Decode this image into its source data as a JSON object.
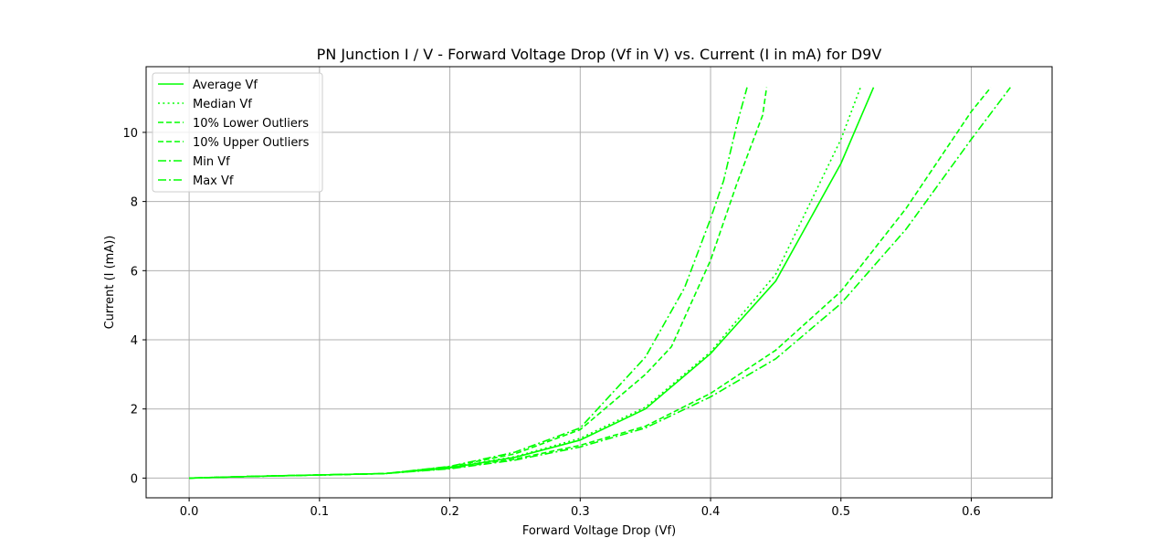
{
  "chart_data": {
    "type": "line",
    "title": "PN Junction I / V - Forward Voltage Drop (Vf in V) vs. Current (I in mA) for D9V",
    "xlabel": "Forward Voltage Drop (Vf)",
    "ylabel": "Current (I (mA))",
    "xlim": [
      -0.033,
      0.662
    ],
    "ylim": [
      -0.57,
      11.9
    ],
    "xticks": [
      "0.0",
      "0.1",
      "0.2",
      "0.3",
      "0.4",
      "0.5",
      "0.6"
    ],
    "yticks": [
      "0",
      "2",
      "4",
      "6",
      "8",
      "10"
    ],
    "grid": true,
    "legend_position": "top-left",
    "series_color": "#00ff00",
    "series": [
      {
        "name": "Average Vf",
        "style": "solid",
        "points": [
          [
            0.0,
            0.0
          ],
          [
            0.05,
            0.05
          ],
          [
            0.1,
            0.09
          ],
          [
            0.15,
            0.13
          ],
          [
            0.2,
            0.3
          ],
          [
            0.25,
            0.6
          ],
          [
            0.3,
            1.1
          ],
          [
            0.35,
            2.0
          ],
          [
            0.4,
            3.6
          ],
          [
            0.45,
            5.7
          ],
          [
            0.5,
            9.1
          ],
          [
            0.525,
            11.3
          ]
        ]
      },
      {
        "name": "Median Vf",
        "style": "dotted",
        "points": [
          [
            0.0,
            0.0
          ],
          [
            0.05,
            0.05
          ],
          [
            0.1,
            0.09
          ],
          [
            0.15,
            0.13
          ],
          [
            0.2,
            0.31
          ],
          [
            0.25,
            0.62
          ],
          [
            0.3,
            1.15
          ],
          [
            0.35,
            2.05
          ],
          [
            0.4,
            3.65
          ],
          [
            0.45,
            5.9
          ],
          [
            0.5,
            9.8
          ],
          [
            0.515,
            11.3
          ]
        ]
      },
      {
        "name": "10% Lower Outliers",
        "style": "dashed",
        "points": [
          [
            0.0,
            0.0
          ],
          [
            0.05,
            0.05
          ],
          [
            0.1,
            0.09
          ],
          [
            0.15,
            0.13
          ],
          [
            0.2,
            0.33
          ],
          [
            0.25,
            0.7
          ],
          [
            0.3,
            1.4
          ],
          [
            0.35,
            3.0
          ],
          [
            0.37,
            3.8
          ],
          [
            0.4,
            6.3
          ],
          [
            0.42,
            8.5
          ],
          [
            0.44,
            10.5
          ],
          [
            0.443,
            11.3
          ]
        ]
      },
      {
        "name": "10% Upper Outliers",
        "style": "dashed",
        "points": [
          [
            0.0,
            0.0
          ],
          [
            0.05,
            0.05
          ],
          [
            0.1,
            0.09
          ],
          [
            0.15,
            0.13
          ],
          [
            0.2,
            0.28
          ],
          [
            0.25,
            0.55
          ],
          [
            0.3,
            0.95
          ],
          [
            0.35,
            1.5
          ],
          [
            0.4,
            2.45
          ],
          [
            0.45,
            3.7
          ],
          [
            0.5,
            5.4
          ],
          [
            0.55,
            7.8
          ],
          [
            0.6,
            10.6
          ],
          [
            0.615,
            11.3
          ]
        ]
      },
      {
        "name": "Min Vf",
        "style": "dashdot",
        "points": [
          [
            0.0,
            0.0
          ],
          [
            0.05,
            0.05
          ],
          [
            0.1,
            0.09
          ],
          [
            0.15,
            0.13
          ],
          [
            0.2,
            0.27
          ],
          [
            0.25,
            0.52
          ],
          [
            0.3,
            0.9
          ],
          [
            0.35,
            1.45
          ],
          [
            0.4,
            2.35
          ],
          [
            0.45,
            3.45
          ],
          [
            0.5,
            5.05
          ],
          [
            0.55,
            7.2
          ],
          [
            0.6,
            9.8
          ],
          [
            0.63,
            11.3
          ]
        ]
      },
      {
        "name": "Max Vf",
        "style": "dashdot",
        "points": [
          [
            0.0,
            0.0
          ],
          [
            0.05,
            0.05
          ],
          [
            0.1,
            0.09
          ],
          [
            0.15,
            0.13
          ],
          [
            0.2,
            0.34
          ],
          [
            0.25,
            0.75
          ],
          [
            0.3,
            1.45
          ],
          [
            0.35,
            3.5
          ],
          [
            0.38,
            5.5
          ],
          [
            0.4,
            7.5
          ],
          [
            0.41,
            8.6
          ],
          [
            0.42,
            10.2
          ],
          [
            0.428,
            11.3
          ]
        ]
      }
    ]
  }
}
